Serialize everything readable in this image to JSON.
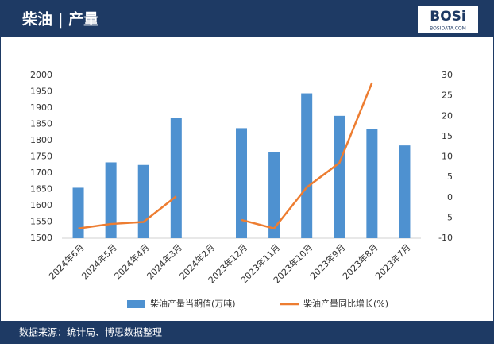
{
  "chart_data": {
    "type": "bar_line",
    "title": "柴油 | 产量",
    "logo_text": "BOSi",
    "logo_subtext": "BOSIDATA.COM",
    "source": "数据来源：统计局、博思数据整理",
    "categories": [
      "2024年6月",
      "2024年5月",
      "2024年4月",
      "2024年3月",
      "2024年2月",
      "2023年12月",
      "2023年11月",
      "2023年10月",
      "2023年9月",
      "2023年8月",
      "2023年7月"
    ],
    "series": [
      {
        "name": "柴油产量当期值(万吨)",
        "color": "#4e91d0",
        "kind": "bar",
        "values": [
          1655,
          1733,
          1725,
          1870,
          null,
          1838,
          1765,
          1945,
          1876,
          1835,
          1785
        ]
      },
      {
        "name": "柴油产量同比增长(%)",
        "color": "#ed7d31",
        "kind": "line",
        "axis": "y2",
        "values": [
          -7.6,
          -6.5,
          -6,
          0.3,
          null,
          -5.5,
          -7.6,
          2.5,
          8.5,
          28.2,
          null
        ]
      }
    ],
    "ylim": [
      1500,
      2000
    ],
    "yticks": [
      1500,
      1550,
      1600,
      1650,
      1700,
      1750,
      1800,
      1850,
      1900,
      1950,
      2000
    ],
    "y2lim": [
      -10,
      30
    ],
    "y2ticks": [
      -10,
      -5,
      0,
      5,
      10,
      15,
      20,
      25,
      30
    ]
  }
}
